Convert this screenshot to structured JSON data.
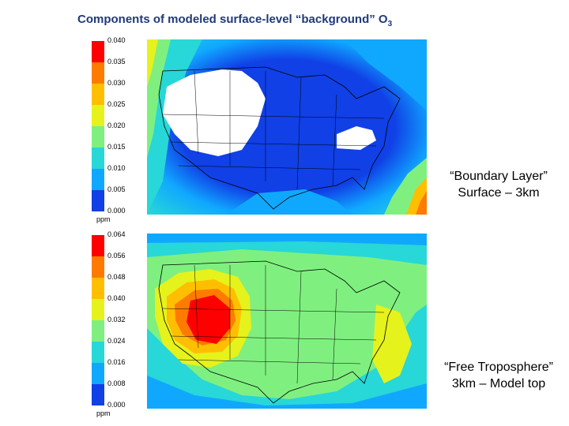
{
  "page": {
    "title": "Components of modeled surface-level “background” O",
    "title_sub": "3"
  },
  "chart_data": [
    {
      "type": "heatmap",
      "title": "",
      "caption_line1": "“Boundary Layer”",
      "caption_line2": "Surface – 3km",
      "unit": "ppm",
      "colorbar_ticks": [
        "0.040",
        "0.035",
        "0.030",
        "0.025",
        "0.020",
        "0.015",
        "0.010",
        "0.005",
        "0.000"
      ],
      "colorbar_colors": [
        "#ff0000",
        "#ff7b00",
        "#ffbf00",
        "#e6f21c",
        "#7ff07f",
        "#28d7d7",
        "#10a8ff",
        "#1040e6"
      ],
      "range": [
        0.0,
        0.04
      ]
    },
    {
      "type": "heatmap",
      "title": "",
      "caption_line1": "“Free Troposphere”",
      "caption_line2": "3km – Model top",
      "unit": "ppm",
      "colorbar_ticks": [
        "0.064",
        "0.056",
        "0.048",
        "0.040",
        "0.032",
        "0.024",
        "0.016",
        "0.008",
        "0.000"
      ],
      "colorbar_colors": [
        "#ff0000",
        "#ff7b00",
        "#ffbf00",
        "#e6f21c",
        "#7ff07f",
        "#28d7d7",
        "#10a8ff",
        "#1040e6"
      ],
      "range": [
        0.0,
        0.064
      ]
    }
  ]
}
